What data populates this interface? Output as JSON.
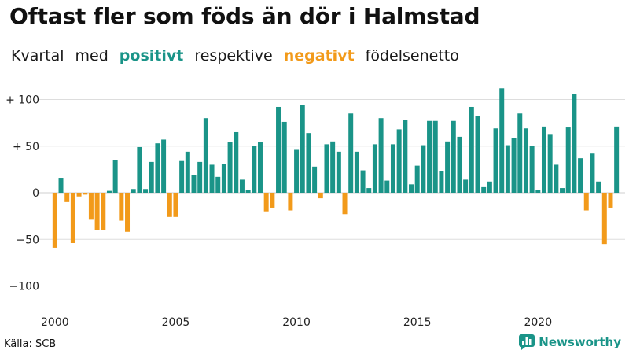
{
  "header": {
    "title": "Oftast fler som föds än dör i Halmstad",
    "subtitle_parts": [
      "Kvartal",
      "med",
      "positivt",
      "respektive",
      "negativt",
      "födelsenetto"
    ]
  },
  "footer": {
    "source": "Källa: SCB",
    "brand": "Newsworthy",
    "brand_icon": "bar-chart-logo-icon"
  },
  "colors": {
    "positive": "#1a9488",
    "negative": "#f29a1a",
    "grid": "#dddddd"
  },
  "chart_data": {
    "type": "bar",
    "title": "Oftast fler som föds än dör i Halmstad",
    "subtitle": "Kvartal med positivt respektive negativt födelsenetto",
    "xlabel": "",
    "ylabel": "",
    "ylim": [
      -110,
      110
    ],
    "yticks": [
      100,
      50,
      0,
      -50,
      -100
    ],
    "ytick_labels": [
      "+ 100",
      "+ 50",
      "0",
      "−50",
      "−100"
    ],
    "xtick_labels": [
      "2000",
      "2005",
      "2010",
      "2015",
      "2020"
    ],
    "xticks_start_year": 2000,
    "grid": true,
    "series": [
      {
        "values": [
          -59,
          16,
          -10,
          -54,
          -4,
          -2,
          -29,
          -40,
          -40,
          2,
          35,
          -30,
          -42,
          4,
          49,
          4,
          33,
          53,
          57,
          -26,
          -26,
          34,
          44,
          19,
          33,
          80,
          30,
          17,
          31,
          54,
          65,
          14,
          3,
          50,
          54,
          -20,
          -16,
          92,
          76,
          -19,
          46,
          94,
          64,
          28,
          -6,
          52,
          55,
          44,
          -23,
          85,
          44,
          24,
          5,
          52,
          80,
          13,
          52,
          68,
          78,
          9,
          29,
          51,
          77,
          77,
          23,
          55,
          77,
          60,
          14,
          92,
          82,
          6,
          12,
          69,
          112,
          51,
          59,
          85,
          69,
          50,
          3,
          71,
          63,
          30,
          5,
          70,
          106,
          37,
          -19,
          42,
          12,
          -55,
          -16,
          71
        ]
      }
    ]
  }
}
